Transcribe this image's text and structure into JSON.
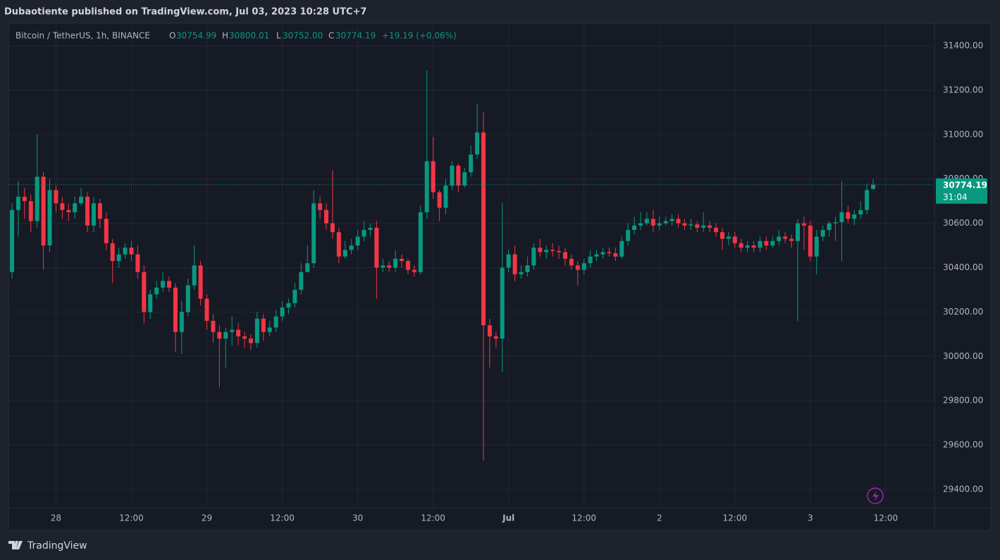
{
  "header": {
    "published": "Dubaotiente published on TradingView.com, Jul 03, 2023 10:28 UTC+7"
  },
  "chart_data": {
    "type": "candlestick",
    "symbol": "Bitcoin / TetherUS, 1h, BINANCE",
    "legend": {
      "o": "O",
      "open": "30754.99",
      "h": "H",
      "high": "30800.01",
      "l": "L",
      "low": "30752.00",
      "c": "C",
      "close": "30774.19",
      "change": "+19.19 (+0.06%)"
    },
    "categories": [
      null,
      null,
      null,
      null,
      null,
      null,
      null,
      "28",
      null,
      null,
      null,
      null,
      null,
      null,
      null,
      null,
      null,
      null,
      null,
      "12:00",
      null,
      null,
      null,
      null,
      null,
      null,
      null,
      null,
      null,
      null,
      null,
      "29",
      null,
      null,
      null,
      null,
      null,
      null,
      null,
      null,
      null,
      null,
      null,
      "12:00",
      null,
      null,
      null,
      null,
      null,
      null,
      null,
      null,
      null,
      null,
      null,
      "30",
      null,
      null,
      null,
      null,
      null,
      null,
      null,
      null,
      null,
      null,
      null,
      "12:00",
      null,
      null,
      null,
      null,
      null,
      null,
      null,
      null,
      null,
      null,
      null,
      "Jul",
      null,
      null,
      null,
      null,
      null,
      null,
      null,
      null,
      null,
      null,
      null,
      "12:00",
      null,
      null,
      null,
      null,
      null,
      null,
      null,
      null,
      null,
      null,
      null,
      "2",
      null,
      null,
      null,
      null,
      null,
      null,
      null,
      null,
      null,
      null,
      null,
      "12:00",
      null,
      null,
      null,
      null,
      null,
      null,
      null,
      null,
      null,
      null,
      null,
      "3",
      null,
      null,
      null,
      null,
      null,
      null,
      null,
      null,
      null,
      null,
      null,
      "12:00",
      null,
      null,
      null,
      null,
      null,
      null,
      null
    ],
    "open": [
      30380,
      30660,
      30720,
      30700,
      30610,
      30810,
      30500,
      30750,
      30690,
      30660,
      30650,
      30690,
      30720,
      30590,
      30690,
      30620,
      30510,
      30430,
      30460,
      30490,
      30460,
      30380,
      30200,
      30280,
      30310,
      30340,
      30310,
      30110,
      30200,
      30320,
      30410,
      30260,
      30160,
      30110,
      30080,
      30110,
      30120,
      30090,
      30080,
      30060,
      30170,
      30110,
      30130,
      30180,
      30220,
      30240,
      30300,
      30380,
      30420,
      30690,
      30660,
      30600,
      30560,
      30450,
      30480,
      30500,
      30540,
      30570,
      30580,
      30400,
      30410,
      30400,
      30440,
      30430,
      30390,
      30380,
      30650,
      30880,
      30740,
      30670,
      30770,
      30860,
      30770,
      30830,
      30910,
      31010,
      30140,
      30090,
      30080,
      30400,
      30460,
      30370,
      30380,
      30410,
      30490,
      30470,
      30480,
      30475,
      30470,
      30440,
      30410,
      30390,
      30420,
      30450,
      30460,
      30470,
      30465,
      30450,
      30520,
      30570,
      30590,
      30600,
      30620,
      30590,
      30600,
      30610,
      30620,
      30600,
      30590,
      30595,
      30580,
      30590,
      30580,
      30560,
      30530,
      30540,
      30510,
      30490,
      30500,
      30490,
      30520,
      30500,
      30520,
      30540,
      30530,
      30520,
      30600,
      30590,
      30450,
      30540,
      30570,
      30600,
      30605,
      30650,
      30620,
      30640,
      30660,
      30754.99,
      null,
      null,
      null,
      null,
      null,
      null,
      null,
      null,
      null
    ],
    "high": [
      30690,
      30790,
      30760,
      30730,
      31000,
      30830,
      30800,
      30770,
      30720,
      30690,
      30720,
      30760,
      30740,
      30720,
      30710,
      30650,
      30530,
      30490,
      30510,
      30520,
      30500,
      30410,
      30300,
      30340,
      30380,
      30360,
      30330,
      30250,
      30350,
      30500,
      30430,
      30280,
      30190,
      30140,
      30130,
      30180,
      30150,
      30110,
      30100,
      30200,
      30190,
      30160,
      30210,
      30250,
      30260,
      30330,
      30420,
      30500,
      30750,
      30720,
      30690,
      30840,
      30580,
      30520,
      30530,
      30570,
      30610,
      30600,
      30610,
      30440,
      30430,
      30480,
      30460,
      30440,
      30410,
      30680,
      31290,
      30990,
      30750,
      30800,
      30880,
      30870,
      30850,
      30950,
      31140,
      31100,
      30170,
      30110,
      30690,
      30480,
      30500,
      30410,
      30450,
      30510,
      30530,
      30500,
      30510,
      30500,
      30490,
      30460,
      30430,
      30440,
      30480,
      30480,
      30490,
      30490,
      30490,
      30540,
      30600,
      30630,
      30650,
      30650,
      30660,
      30630,
      30630,
      30640,
      30640,
      30620,
      30620,
      30610,
      30650,
      30610,
      30600,
      30580,
      30560,
      30560,
      30530,
      30520,
      30520,
      30540,
      30540,
      30540,
      30570,
      30560,
      30550,
      30620,
      30630,
      30610,
      30570,
      30590,
      30610,
      30630,
      30790,
      30680,
      30660,
      30700,
      30780,
      30800.01,
      null,
      null,
      null,
      null,
      null,
      null,
      null,
      null,
      null
    ],
    "low": [
      30350,
      30540,
      30620,
      30560,
      30580,
      30390,
      30470,
      30650,
      30620,
      30610,
      30620,
      30680,
      30560,
      30560,
      30580,
      30480,
      30330,
      30400,
      30440,
      30430,
      30350,
      30150,
      30170,
      30260,
      30290,
      30290,
      30020,
      30010,
      30180,
      30300,
      30230,
      30120,
      30060,
      29860,
      29950,
      30050,
      30050,
      30040,
      30030,
      30040,
      30070,
      30090,
      30110,
      30160,
      30190,
      30220,
      30280,
      30400,
      30400,
      30620,
      30570,
      30530,
      30420,
      30440,
      30460,
      30480,
      30520,
      30540,
      30260,
      30380,
      30380,
      30380,
      30400,
      30370,
      30360,
      30370,
      30620,
      30710,
      30610,
      30640,
      30750,
      30740,
      30760,
      30810,
      30890,
      29530,
      29950,
      30040,
      29930,
      30380,
      30340,
      30350,
      30360,
      30390,
      30450,
      30440,
      30450,
      30440,
      30410,
      30390,
      30320,
      30370,
      30400,
      30430,
      30440,
      30450,
      30430,
      30440,
      30500,
      30550,
      30570,
      30590,
      30560,
      30570,
      30590,
      30590,
      30580,
      30570,
      30570,
      30560,
      30560,
      30560,
      30540,
      30480,
      30500,
      30490,
      30470,
      30470,
      30470,
      30470,
      30480,
      30490,
      30500,
      30510,
      30490,
      30160,
      30480,
      30430,
      30370,
      30520,
      30540,
      30520,
      30430,
      30600,
      30590,
      30620,
      30640,
      30752.0,
      null,
      null,
      null,
      null,
      null,
      null,
      null,
      null,
      null
    ],
    "close": [
      30660,
      30720,
      30700,
      30610,
      30810,
      30500,
      30750,
      30690,
      30660,
      30650,
      30690,
      30720,
      30590,
      30690,
      30620,
      30510,
      30430,
      30460,
      30490,
      30460,
      30380,
      30200,
      30280,
      30310,
      30340,
      30310,
      30110,
      30200,
      30320,
      30410,
      30260,
      30160,
      30110,
      30080,
      30110,
      30120,
      30090,
      30080,
      30060,
      30170,
      30110,
      30130,
      30180,
      30220,
      30240,
      30300,
      30380,
      30420,
      30690,
      30660,
      30600,
      30560,
      30450,
      30480,
      30500,
      30540,
      30570,
      30580,
      30400,
      30410,
      30400,
      30440,
      30430,
      30390,
      30380,
      30650,
      30880,
      30740,
      30670,
      30770,
      30860,
      30770,
      30830,
      30910,
      31010,
      30140,
      30090,
      30080,
      30400,
      30460,
      30370,
      30380,
      30410,
      30490,
      30470,
      30480,
      30475,
      30470,
      30440,
      30410,
      30390,
      30420,
      30450,
      30460,
      30470,
      30465,
      30450,
      30520,
      30570,
      30590,
      30600,
      30620,
      30590,
      30600,
      30610,
      30620,
      30600,
      30590,
      30595,
      30580,
      30590,
      30580,
      30560,
      30530,
      30540,
      30510,
      30490,
      30500,
      30490,
      30520,
      30500,
      30520,
      30540,
      30530,
      30520,
      30600,
      30590,
      30450,
      30540,
      30570,
      30600,
      30605,
      30650,
      30620,
      30640,
      30660,
      30750,
      30774.19,
      null,
      null,
      null,
      null,
      null,
      null,
      null,
      null,
      null
    ],
    "up_color": "#089981",
    "down_color": "#f23645",
    "ylim": [
      29317,
      31502
    ],
    "yticks": [
      {
        "value": 29400,
        "label": "29400.00"
      },
      {
        "value": 29600,
        "label": "29600.00"
      },
      {
        "value": 29800,
        "label": "29800.00"
      },
      {
        "value": 30000,
        "label": "30000.00"
      },
      {
        "value": 30200,
        "label": "30200.00"
      },
      {
        "value": 30400,
        "label": "30400.00"
      },
      {
        "value": 30600,
        "label": "30600.00"
      },
      {
        "value": 30800,
        "label": "30800.00"
      },
      {
        "value": 31000,
        "label": "31000.00"
      },
      {
        "value": 31200,
        "label": "31200.00"
      },
      {
        "value": 31400,
        "label": "31400.00"
      }
    ],
    "grid": true,
    "last_price": {
      "label": "30774.19",
      "countdown": "31:04"
    }
  },
  "footer": {
    "brand": "TradingView"
  }
}
